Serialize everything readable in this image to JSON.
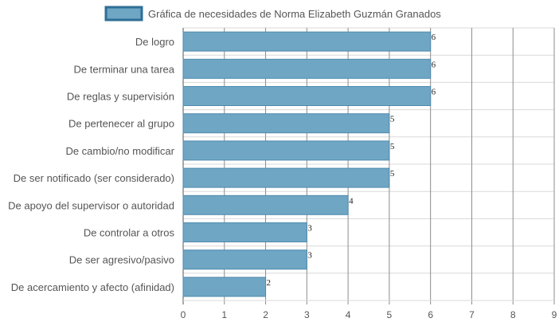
{
  "chart_data": {
    "type": "bar",
    "orientation": "horizontal",
    "legend": {
      "label": "Gráfica de necesidades de Norma Elizabeth Guzmán Granados",
      "placement": "top-center"
    },
    "categories": [
      "De logro",
      "De terminar una tarea",
      "De reglas y supervisión",
      "De pertenecer al grupo",
      "De cambio/no modificar",
      "De ser notificado (ser considerado)",
      "De apoyo del supervisor o autoridad",
      "De controlar a otros",
      "De ser agresivo/pasivo",
      "De acercamiento y afecto (afinidad)"
    ],
    "series": [
      {
        "name": "Gráfica de necesidades de Norma Elizabeth Guzmán Granados",
        "values": [
          6,
          6,
          6,
          5,
          5,
          5,
          4,
          3,
          3,
          2
        ]
      }
    ],
    "xlim": [
      0,
      9
    ],
    "xticks": [
      "0",
      "1",
      "2",
      "3",
      "4",
      "5",
      "6",
      "7",
      "8",
      "9"
    ],
    "grid": true,
    "data_labels": true,
    "colors": {
      "bar_fill": "#6ea6c4",
      "bar_stroke": "#4f8aad",
      "legend_stroke": "#2f6f96",
      "grid": "#d9d9d9",
      "grid_major": "#8c8c8c",
      "axis": "#555555"
    }
  }
}
